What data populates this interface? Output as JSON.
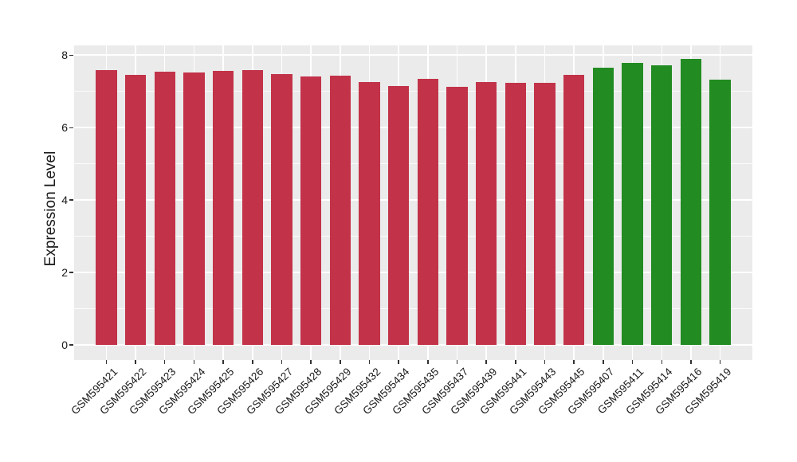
{
  "chart_data": {
    "type": "bar",
    "title": "",
    "xlabel": "",
    "ylabel": "Expression Level",
    "ylim": [
      0,
      8.4
    ],
    "yticks": [
      0,
      2,
      4,
      6,
      8
    ],
    "minor_yticks": [
      1,
      3,
      5,
      7
    ],
    "grid": "on",
    "legend_position": "none",
    "panel_bg": "#EBEBEB",
    "grid_color": "#FFFFFF",
    "tick_color": "#333333",
    "text_color": "#1A1A1A",
    "group_colors": {
      "group1": "#C23349",
      "group2": "#228B22"
    },
    "bars": [
      {
        "label": "GSM595421",
        "value": 7.6,
        "group": "group1"
      },
      {
        "label": "GSM595422",
        "value": 7.47,
        "group": "group1"
      },
      {
        "label": "GSM595423",
        "value": 7.54,
        "group": "group1"
      },
      {
        "label": "GSM595424",
        "value": 7.52,
        "group": "group1"
      },
      {
        "label": "GSM595425",
        "value": 7.58,
        "group": "group1"
      },
      {
        "label": "GSM595426",
        "value": 7.59,
        "group": "group1"
      },
      {
        "label": "GSM595427",
        "value": 7.49,
        "group": "group1"
      },
      {
        "label": "GSM595428",
        "value": 7.41,
        "group": "group1"
      },
      {
        "label": "GSM595429",
        "value": 7.44,
        "group": "group1"
      },
      {
        "label": "GSM595432",
        "value": 7.27,
        "group": "group1"
      },
      {
        "label": "GSM595434",
        "value": 7.16,
        "group": "group1"
      },
      {
        "label": "GSM595435",
        "value": 7.34,
        "group": "group1"
      },
      {
        "label": "GSM595437",
        "value": 7.14,
        "group": "group1"
      },
      {
        "label": "GSM595439",
        "value": 7.27,
        "group": "group1"
      },
      {
        "label": "GSM595441",
        "value": 7.23,
        "group": "group1"
      },
      {
        "label": "GSM595443",
        "value": 7.23,
        "group": "group1"
      },
      {
        "label": "GSM595445",
        "value": 7.47,
        "group": "group1"
      },
      {
        "label": "GSM595407",
        "value": 7.65,
        "group": "group2"
      },
      {
        "label": "GSM595411",
        "value": 7.78,
        "group": "group2"
      },
      {
        "label": "GSM595414",
        "value": 7.72,
        "group": "group2"
      },
      {
        "label": "GSM595416",
        "value": 7.9,
        "group": "group2"
      },
      {
        "label": "GSM595419",
        "value": 7.32,
        "group": "group2"
      }
    ]
  }
}
